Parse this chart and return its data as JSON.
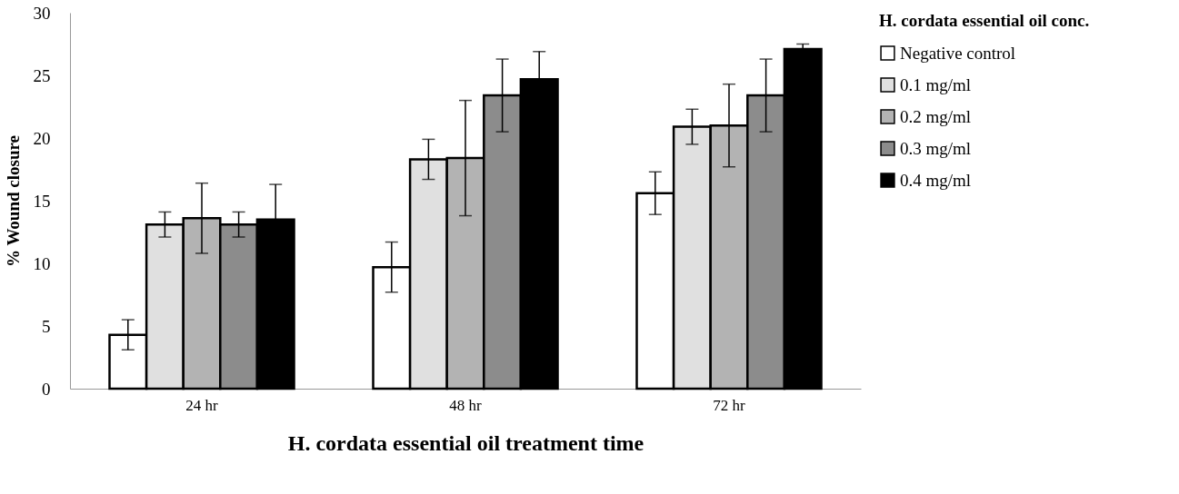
{
  "chart_data": {
    "type": "bar",
    "xlabel": "H. cordata essential oil treatment time",
    "ylabel": "% Wound closure",
    "legend_title": "H. cordata essential oil conc.",
    "legend": "right",
    "grid": false,
    "categories": [
      "24 hr",
      "48 hr",
      "72 hr"
    ],
    "ylim": [
      0,
      30
    ],
    "yticks": [
      0,
      5,
      10,
      15,
      20,
      25,
      30
    ],
    "series": [
      {
        "name": "Negative control",
        "color": "#ffffff",
        "values": [
          4.3,
          9.7,
          15.6
        ],
        "errors": [
          1.2,
          2.0,
          1.7
        ]
      },
      {
        "name": "0.1 mg/ml",
        "color": "#e0e0e0",
        "values": [
          13.1,
          18.3,
          20.9
        ],
        "errors": [
          1.0,
          1.6,
          1.4
        ]
      },
      {
        "name": "0.2 mg/ml",
        "color": "#b3b3b3",
        "values": [
          13.6,
          18.4,
          21.0
        ],
        "errors": [
          2.8,
          4.6,
          3.3
        ]
      },
      {
        "name": "0.3 mg/ml",
        "color": "#8c8c8c",
        "values": [
          13.1,
          23.4,
          23.4
        ],
        "errors": [
          1.0,
          2.9,
          2.9
        ]
      },
      {
        "name": "0.4 mg/ml",
        "color": "#000000",
        "values": [
          13.5,
          24.7,
          27.1
        ],
        "errors": [
          2.8,
          2.2,
          0.4
        ]
      }
    ]
  }
}
